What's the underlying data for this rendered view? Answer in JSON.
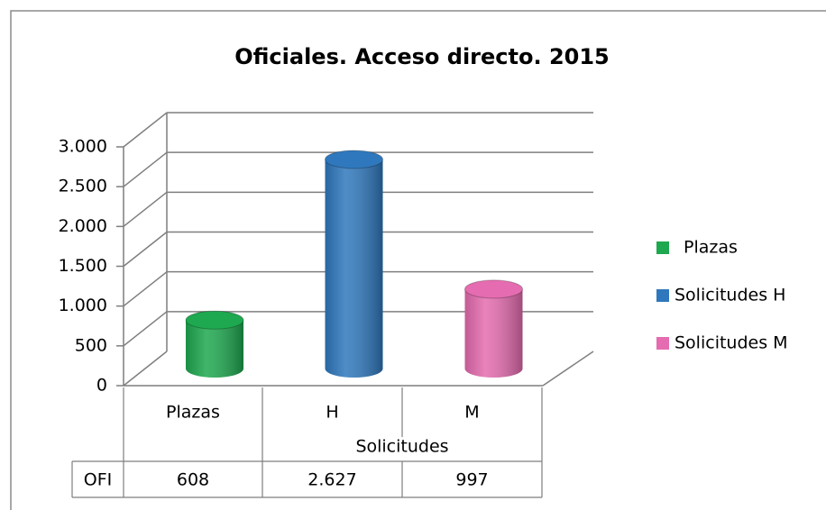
{
  "chart_data": {
    "type": "bar",
    "title": "Oficiales. Acceso directo. 2015",
    "categories": [
      "Plazas",
      "H",
      "M"
    ],
    "group_label": "Solicitudes",
    "table_row_label": "OFI",
    "values": [
      608,
      2627,
      997
    ],
    "value_labels": [
      "608",
      "2.627",
      "997"
    ],
    "colors": [
      "#1ea84f",
      "#2f78bd",
      "#e56cb0"
    ],
    "legend": [
      "Plazas",
      "Solicitudes H",
      "Solicitudes M"
    ],
    "ylim": [
      0,
      3000
    ],
    "yticks": [
      0,
      500,
      {
        "value": 1000,
        "label": "1.000"
      },
      {
        "value": 1500,
        "label": "1.500"
      },
      {
        "value": 2000,
        "label": "2.000"
      },
      {
        "value": 2500,
        "label": "2.500"
      },
      {
        "value": 3000,
        "label": "3.000"
      }
    ],
    "grid": true
  }
}
